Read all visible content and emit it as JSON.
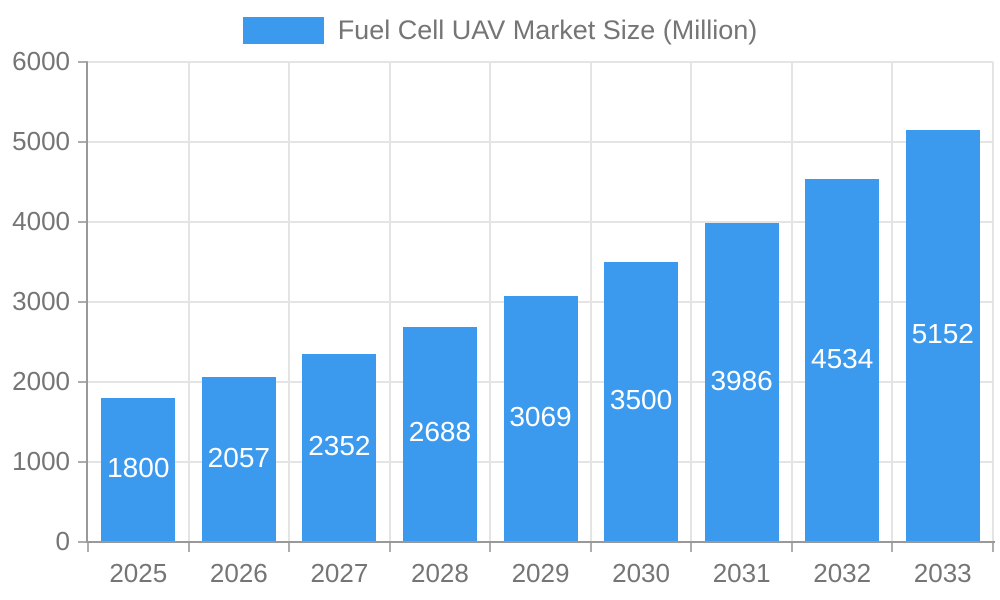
{
  "chart_data": {
    "type": "bar",
    "title": "Fuel Cell UAV Market Size (Million)",
    "categories": [
      "2025",
      "2026",
      "2027",
      "2028",
      "2029",
      "2030",
      "2031",
      "2032",
      "2033"
    ],
    "values": [
      1800,
      2057,
      2352,
      2688,
      3069,
      3500,
      3986,
      4534,
      5152
    ],
    "xlabel": "",
    "ylabel": "",
    "ylim": [
      0,
      6000
    ],
    "ytick_step": 1000,
    "ytick_labels": [
      "0",
      "1000",
      "2000",
      "3000",
      "4000",
      "5000",
      "6000"
    ],
    "grid": true,
    "legend_position": "top-center",
    "value_label_position": "inside-center",
    "colors": {
      "bar": "#3B99EE",
      "value_label": "#FFFFFF",
      "gridline": "#E4E4E4",
      "tick_mark": "#ADADAD",
      "axis_line": "#999999",
      "tick_label": "#757575",
      "legend_text": "#757575",
      "background": "#FFFFFF"
    }
  }
}
